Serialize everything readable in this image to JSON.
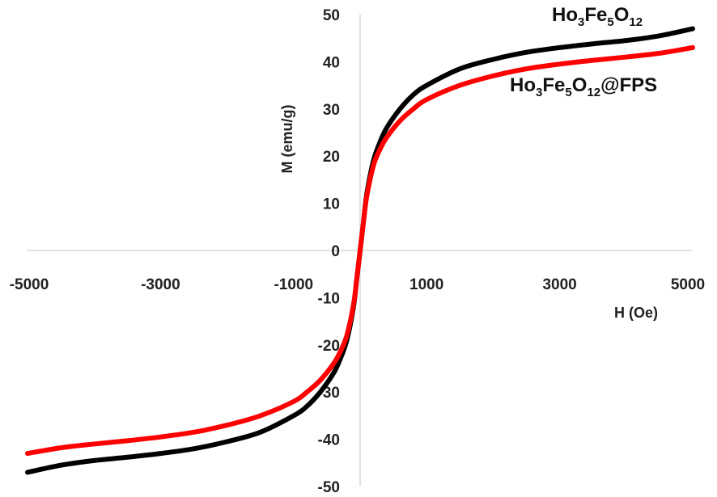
{
  "chart_data": {
    "type": "line",
    "xlabel": "H (Oe)",
    "ylabel": "M (emu/g)",
    "xlim": [
      -5000,
      5000
    ],
    "ylim": [
      -50,
      50
    ],
    "x_ticks": [
      -5000,
      -3000,
      -1000,
      1000,
      3000,
      5000
    ],
    "y_ticks": [
      50,
      40,
      30,
      20,
      10,
      0,
      -10,
      -20,
      -30,
      -40,
      -50
    ],
    "grid": false,
    "series": [
      {
        "name": "Ho3Fe5O12",
        "label_parts": [
          {
            "text": "Ho",
            "sub": false
          },
          {
            "text": "3",
            "sub": true
          },
          {
            "text": "Fe",
            "sub": false
          },
          {
            "text": "5",
            "sub": true
          },
          {
            "text": "O",
            "sub": false
          },
          {
            "text": "12",
            "sub": true
          }
        ],
        "color": "#000000",
        "x": [
          -5000,
          -4500,
          -4000,
          -3500,
          -3000,
          -2500,
          -2000,
          -1500,
          -1000,
          -800,
          -600,
          -400,
          -300,
          -200,
          -100,
          -50,
          0,
          50,
          100,
          200,
          300,
          400,
          600,
          800,
          1000,
          1500,
          2000,
          2500,
          3000,
          3500,
          4000,
          4500,
          5000
        ],
        "y": [
          -47,
          -45.5,
          -44.5,
          -43.8,
          -43,
          -42,
          -40.5,
          -38.5,
          -35,
          -33,
          -30,
          -26,
          -23,
          -19,
          -12,
          -6,
          0,
          6,
          12,
          19,
          23,
          26,
          30,
          33,
          35,
          38.5,
          40.5,
          42,
          43,
          43.8,
          44.5,
          45.5,
          47
        ]
      },
      {
        "name": "Ho3Fe5O12@FPS",
        "label_parts": [
          {
            "text": "Ho",
            "sub": false
          },
          {
            "text": "3",
            "sub": true
          },
          {
            "text": "Fe",
            "sub": false
          },
          {
            "text": "5",
            "sub": true
          },
          {
            "text": "O",
            "sub": false
          },
          {
            "text": "12",
            "sub": true
          },
          {
            "text": "@FPS",
            "sub": false
          }
        ],
        "color": "#ff0000",
        "x": [
          -5000,
          -4500,
          -4000,
          -3500,
          -3000,
          -2500,
          -2000,
          -1500,
          -1000,
          -800,
          -600,
          -400,
          -300,
          -200,
          -100,
          -50,
          0,
          50,
          100,
          200,
          300,
          400,
          600,
          800,
          1000,
          1500,
          2000,
          2500,
          3000,
          3500,
          4000,
          4500,
          5000
        ],
        "y": [
          -43,
          -41.8,
          -41,
          -40.3,
          -39.5,
          -38.5,
          -37,
          -35,
          -32,
          -30,
          -27.5,
          -24,
          -21.5,
          -18,
          -11.5,
          -6,
          0,
          6,
          11.5,
          18,
          21.5,
          24,
          27.5,
          30,
          32,
          35,
          37,
          38.5,
          39.5,
          40.3,
          41,
          41.8,
          43
        ]
      }
    ]
  }
}
